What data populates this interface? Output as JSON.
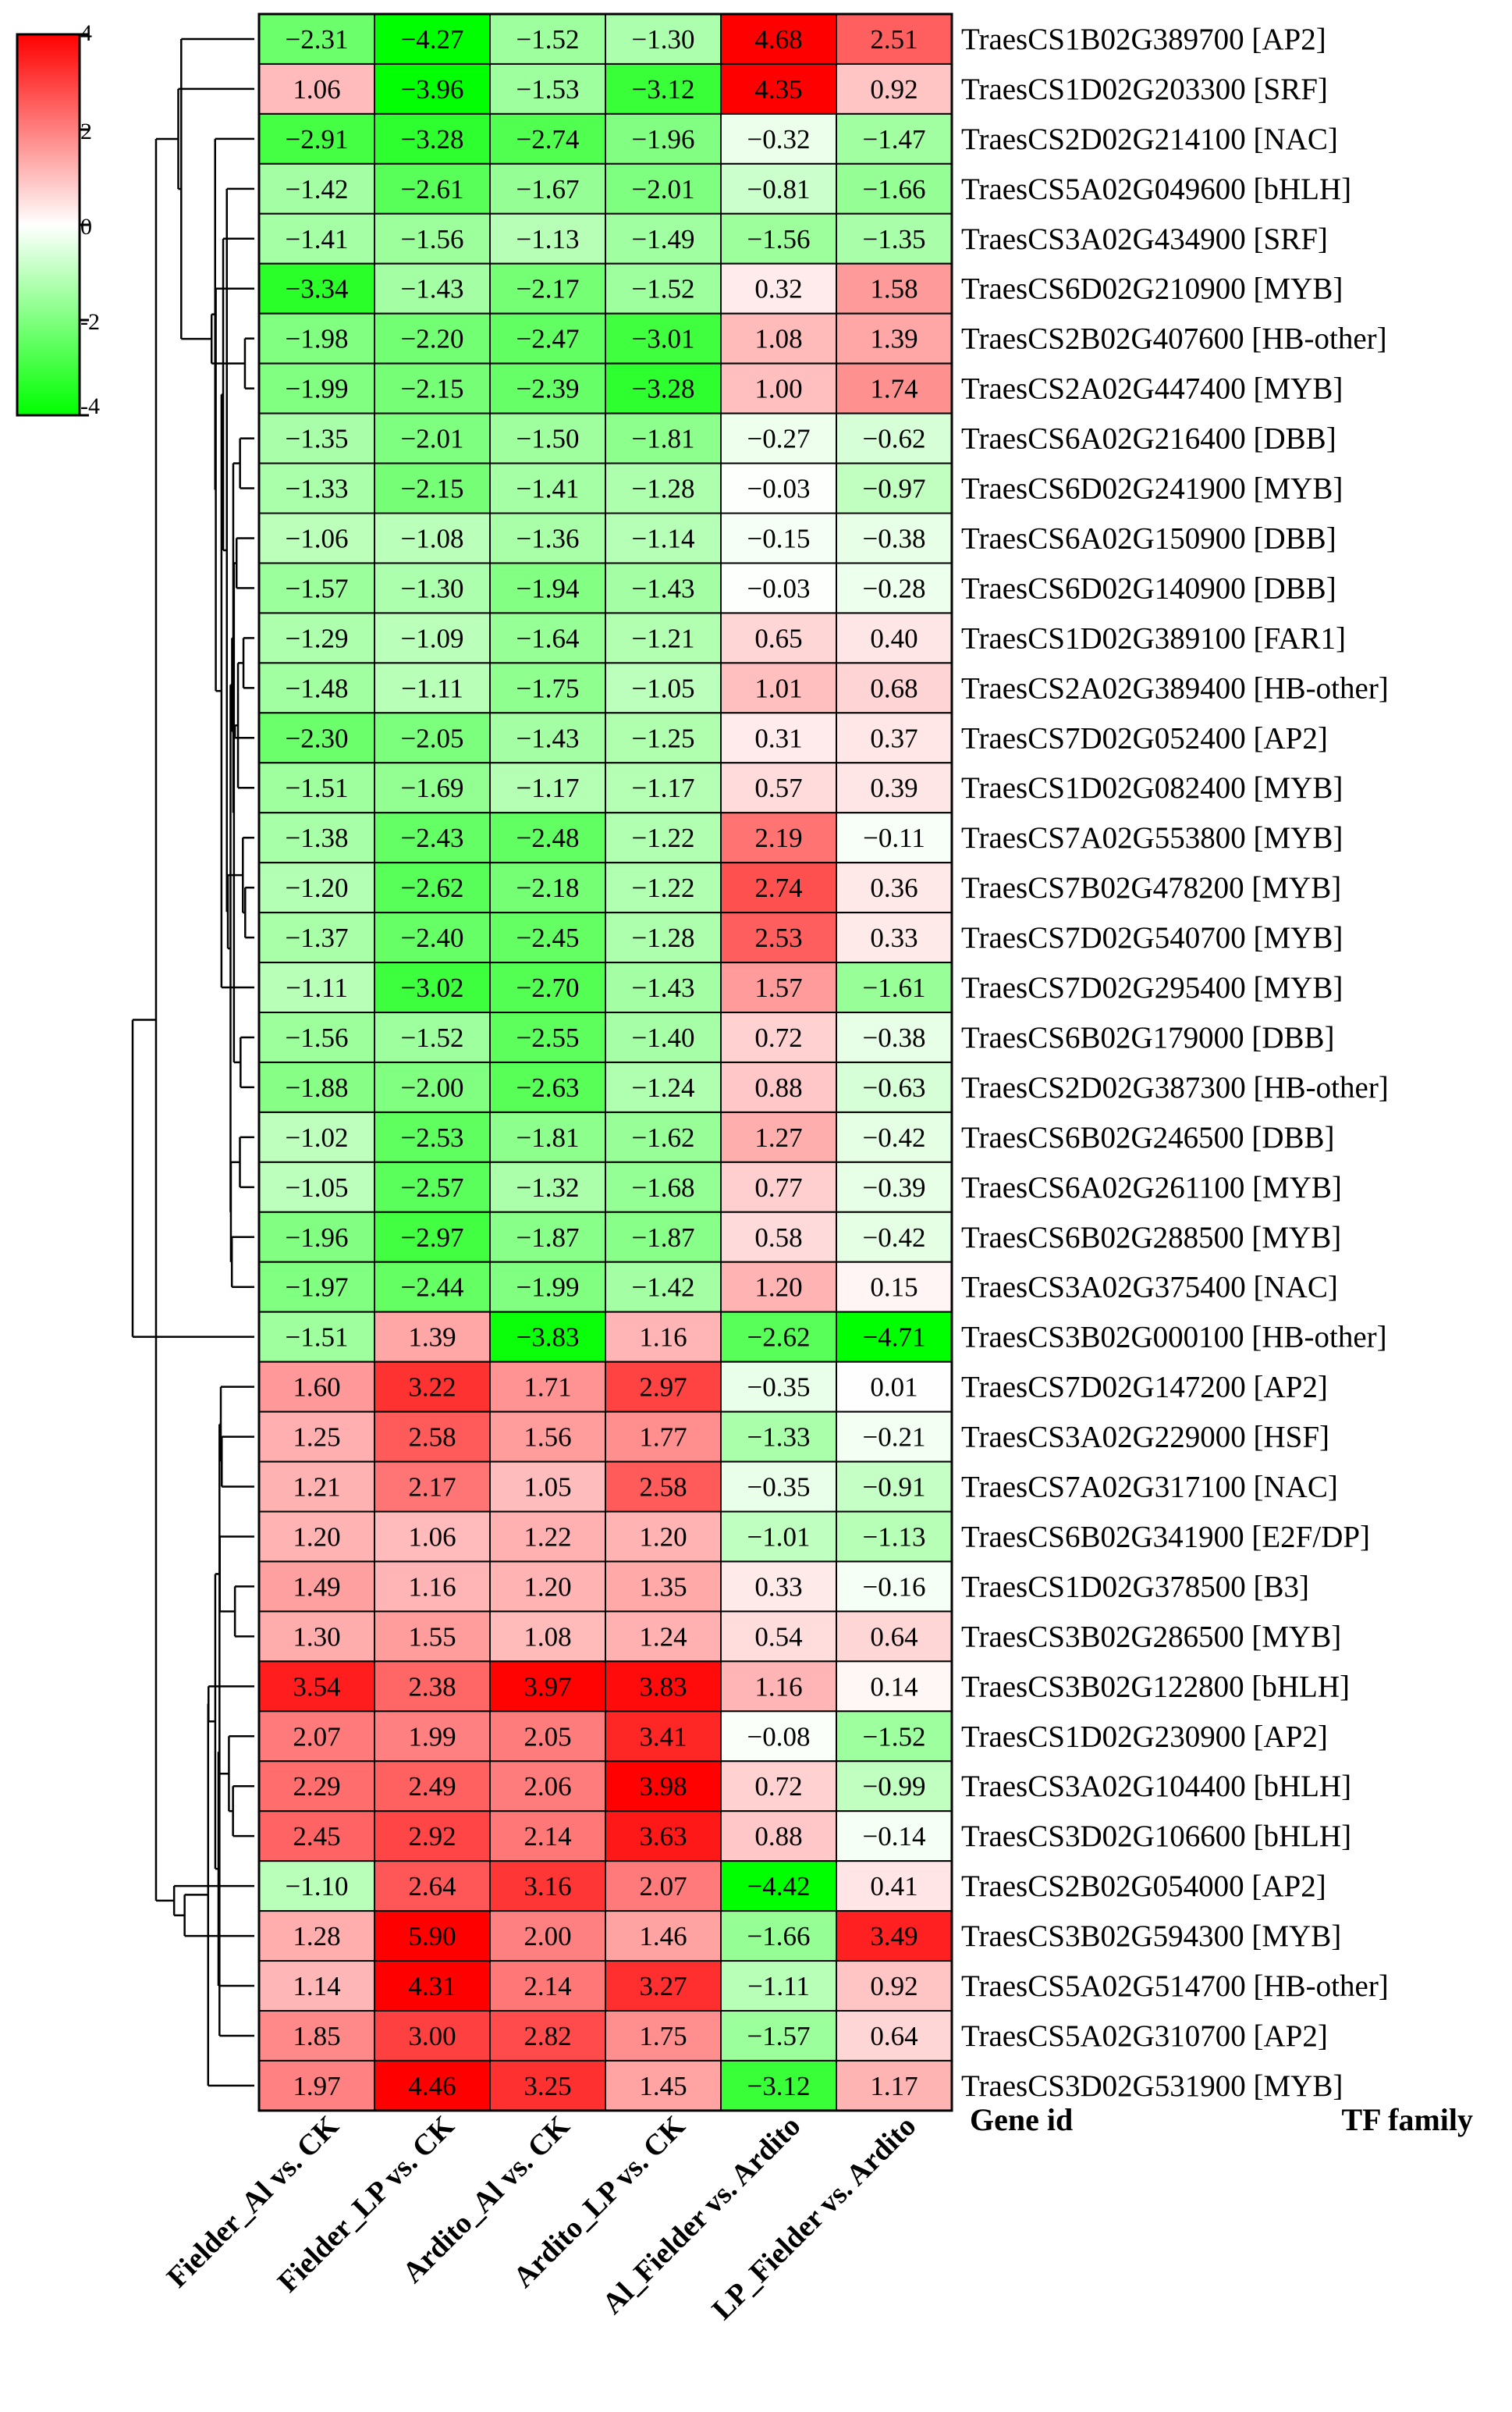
{
  "chart_data": {
    "type": "heatmap",
    "columns": [
      "Fielder_Al vs. CK",
      "Fielder_LP vs. CK",
      "Ardito_Al vs. CK",
      "Ardito_LP vs. CK",
      "Al_Fielder vs. Ardito",
      "LP_Fielder vs. Ardito"
    ],
    "footer": {
      "gene_id": "Gene id",
      "tf_family": "TF family"
    },
    "colorbar": {
      "min": -4,
      "max": 4,
      "ticks": [
        4,
        2,
        0,
        -2,
        -4
      ],
      "colors": {
        "high": "#ff0000",
        "mid": "#ffffff",
        "low": "#00ff00"
      }
    },
    "dendrogram": {
      "order_leaves": true,
      "side": "left"
    },
    "rows": [
      {
        "gene": "TraesCS1B02G389700",
        "family": "[AP2]",
        "values": [
          -2.31,
          -4.27,
          -1.52,
          -1.3,
          4.68,
          2.51
        ]
      },
      {
        "gene": "TraesCS1D02G203300",
        "family": "[SRF]",
        "values": [
          1.06,
          -3.96,
          -1.53,
          -3.12,
          4.35,
          0.92
        ]
      },
      {
        "gene": "TraesCS2D02G214100",
        "family": "[NAC]",
        "values": [
          -2.91,
          -3.28,
          -2.74,
          -1.96,
          -0.32,
          -1.47
        ]
      },
      {
        "gene": "TraesCS5A02G049600",
        "family": "[bHLH]",
        "values": [
          -1.42,
          -2.61,
          -1.67,
          -2.01,
          -0.81,
          -1.66
        ]
      },
      {
        "gene": "TraesCS3A02G434900",
        "family": "[SRF]",
        "values": [
          -1.41,
          -1.56,
          -1.13,
          -1.49,
          -1.56,
          -1.35
        ]
      },
      {
        "gene": "TraesCS6D02G210900",
        "family": "[MYB]",
        "values": [
          -3.34,
          -1.43,
          -2.17,
          -1.52,
          0.32,
          1.58
        ]
      },
      {
        "gene": "TraesCS2B02G407600",
        "family": "[HB-other]",
        "values": [
          -1.98,
          -2.2,
          -2.47,
          -3.01,
          1.08,
          1.39
        ]
      },
      {
        "gene": "TraesCS2A02G447400",
        "family": "[MYB]",
        "values": [
          -1.99,
          -2.15,
          -2.39,
          -3.28,
          1.0,
          1.74
        ]
      },
      {
        "gene": "TraesCS6A02G216400",
        "family": "[DBB]",
        "values": [
          -1.35,
          -2.01,
          -1.5,
          -1.81,
          -0.27,
          -0.62
        ]
      },
      {
        "gene": "TraesCS6D02G241900",
        "family": "[MYB]",
        "values": [
          -1.33,
          -2.15,
          -1.41,
          -1.28,
          -0.03,
          -0.97
        ]
      },
      {
        "gene": "TraesCS6A02G150900",
        "family": "[DBB]",
        "values": [
          -1.06,
          -1.08,
          -1.36,
          -1.14,
          -0.15,
          -0.38
        ]
      },
      {
        "gene": "TraesCS6D02G140900",
        "family": "[DBB]",
        "values": [
          -1.57,
          -1.3,
          -1.94,
          -1.43,
          -0.03,
          -0.28
        ]
      },
      {
        "gene": "TraesCS1D02G389100",
        "family": "[FAR1]",
        "values": [
          -1.29,
          -1.09,
          -1.64,
          -1.21,
          0.65,
          0.4
        ]
      },
      {
        "gene": "TraesCS2A02G389400",
        "family": "[HB-other]",
        "values": [
          -1.48,
          -1.11,
          -1.75,
          -1.05,
          1.01,
          0.68
        ]
      },
      {
        "gene": "TraesCS7D02G052400",
        "family": "[AP2]",
        "values": [
          -2.3,
          -2.05,
          -1.43,
          -1.25,
          0.31,
          0.37
        ]
      },
      {
        "gene": "TraesCS1D02G082400",
        "family": "[MYB]",
        "values": [
          -1.51,
          -1.69,
          -1.17,
          -1.17,
          0.57,
          0.39
        ]
      },
      {
        "gene": "TraesCS7A02G553800",
        "family": "[MYB]",
        "values": [
          -1.38,
          -2.43,
          -2.48,
          -1.22,
          2.19,
          -0.11
        ]
      },
      {
        "gene": "TraesCS7B02G478200",
        "family": "[MYB]",
        "values": [
          -1.2,
          -2.62,
          -2.18,
          -1.22,
          2.74,
          0.36
        ]
      },
      {
        "gene": "TraesCS7D02G540700",
        "family": "[MYB]",
        "values": [
          -1.37,
          -2.4,
          -2.45,
          -1.28,
          2.53,
          0.33
        ]
      },
      {
        "gene": "TraesCS7D02G295400",
        "family": "[MYB]",
        "values": [
          -1.11,
          -3.02,
          -2.7,
          -1.43,
          1.57,
          -1.61
        ]
      },
      {
        "gene": "TraesCS6B02G179000",
        "family": "[DBB]",
        "values": [
          -1.56,
          -1.52,
          -2.55,
          -1.4,
          0.72,
          -0.38
        ]
      },
      {
        "gene": "TraesCS2D02G387300",
        "family": "[HB-other]",
        "values": [
          -1.88,
          -2.0,
          -2.63,
          -1.24,
          0.88,
          -0.63
        ]
      },
      {
        "gene": "TraesCS6B02G246500",
        "family": "[DBB]",
        "values": [
          -1.02,
          -2.53,
          -1.81,
          -1.62,
          1.27,
          -0.42
        ]
      },
      {
        "gene": "TraesCS6A02G261100",
        "family": "[MYB]",
        "values": [
          -1.05,
          -2.57,
          -1.32,
          -1.68,
          0.77,
          -0.39
        ]
      },
      {
        "gene": "TraesCS6B02G288500",
        "family": "[MYB]",
        "values": [
          -1.96,
          -2.97,
          -1.87,
          -1.87,
          0.58,
          -0.42
        ]
      },
      {
        "gene": "TraesCS3A02G375400",
        "family": "[NAC]",
        "values": [
          -1.97,
          -2.44,
          -1.99,
          -1.42,
          1.2,
          0.15
        ]
      },
      {
        "gene": "TraesCS3B02G000100",
        "family": "[HB-other]",
        "values": [
          -1.51,
          1.39,
          -3.83,
          1.16,
          -2.62,
          -4.71
        ]
      },
      {
        "gene": "TraesCS7D02G147200",
        "family": "[AP2]",
        "values": [
          1.6,
          3.22,
          1.71,
          2.97,
          -0.35,
          0.01
        ]
      },
      {
        "gene": "TraesCS3A02G229000",
        "family": "[HSF]",
        "values": [
          1.25,
          2.58,
          1.56,
          1.77,
          -1.33,
          -0.21
        ]
      },
      {
        "gene": "TraesCS7A02G317100",
        "family": "[NAC]",
        "values": [
          1.21,
          2.17,
          1.05,
          2.58,
          -0.35,
          -0.91
        ]
      },
      {
        "gene": "TraesCS6B02G341900",
        "family": "[E2F/DP]",
        "values": [
          1.2,
          1.06,
          1.22,
          1.2,
          -1.01,
          -1.13
        ]
      },
      {
        "gene": "TraesCS1D02G378500",
        "family": "[B3]",
        "values": [
          1.49,
          1.16,
          1.2,
          1.35,
          0.33,
          -0.16
        ]
      },
      {
        "gene": "TraesCS3B02G286500",
        "family": "[MYB]",
        "values": [
          1.3,
          1.55,
          1.08,
          1.24,
          0.54,
          0.64
        ]
      },
      {
        "gene": "TraesCS3B02G122800",
        "family": "[bHLH]",
        "values": [
          3.54,
          2.38,
          3.97,
          3.83,
          1.16,
          0.14
        ]
      },
      {
        "gene": "TraesCS1D02G230900",
        "family": "[AP2]",
        "values": [
          2.07,
          1.99,
          2.05,
          3.41,
          -0.08,
          -1.52
        ]
      },
      {
        "gene": "TraesCS3A02G104400",
        "family": "[bHLH]",
        "values": [
          2.29,
          2.49,
          2.06,
          3.98,
          0.72,
          -0.99
        ]
      },
      {
        "gene": "TraesCS3D02G106600",
        "family": "[bHLH]",
        "values": [
          2.45,
          2.92,
          2.14,
          3.63,
          0.88,
          -0.14
        ]
      },
      {
        "gene": "TraesCS2B02G054000",
        "family": "[AP2]",
        "values": [
          -1.1,
          2.64,
          3.16,
          2.07,
          -4.42,
          0.41
        ]
      },
      {
        "gene": "TraesCS3B02G594300",
        "family": "[MYB]",
        "values": [
          1.28,
          5.9,
          2.0,
          1.46,
          -1.66,
          3.49
        ]
      },
      {
        "gene": "TraesCS5A02G514700",
        "family": "[HB-other]",
        "values": [
          1.14,
          4.31,
          2.14,
          3.27,
          -1.11,
          0.92
        ]
      },
      {
        "gene": "TraesCS5A02G310700",
        "family": "[AP2]",
        "values": [
          1.85,
          3.0,
          2.82,
          1.75,
          -1.57,
          0.64
        ]
      },
      {
        "gene": "TraesCS3D02G531900",
        "family": "[MYB]",
        "values": [
          1.97,
          4.46,
          3.25,
          1.45,
          -3.12,
          1.17
        ]
      }
    ]
  }
}
